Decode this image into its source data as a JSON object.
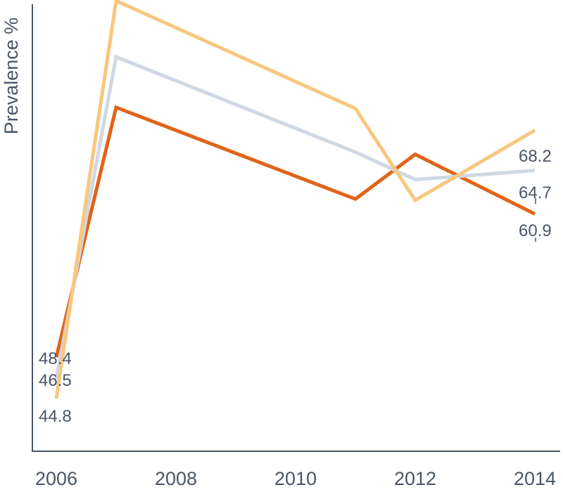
{
  "chart_data": {
    "type": "line",
    "title": "",
    "xlabel": "",
    "ylabel": "Prevalence %",
    "x_ticks": [
      "2006",
      "2008",
      "2010",
      "2012",
      "2014"
    ],
    "xlim": [
      2005.6,
      2014.4
    ],
    "ylim": [
      40.2,
      79.2
    ],
    "grid": false,
    "series": [
      {
        "color": "#e06418",
        "x": [
          2006,
          2007,
          2011,
          2012,
          2014
        ],
        "values": [
          48.4,
          70.2,
          62.2,
          66.1,
          60.9
        ],
        "start_label": "48.4",
        "end_label": "60.9"
      },
      {
        "color": "#d0d8e3",
        "x": [
          2006,
          2007,
          2011,
          2012,
          2014
        ],
        "values": [
          46.5,
          74.6,
          66.3,
          63.9,
          64.7
        ],
        "start_label": "46.5",
        "end_label": "64.7"
      },
      {
        "color": "#f8c77e",
        "x": [
          2006,
          2007,
          2011,
          2012,
          2014
        ],
        "values": [
          44.8,
          79.5,
          70.1,
          62.1,
          68.2
        ],
        "start_label": "44.8",
        "end_label": "68.2"
      }
    ]
  }
}
